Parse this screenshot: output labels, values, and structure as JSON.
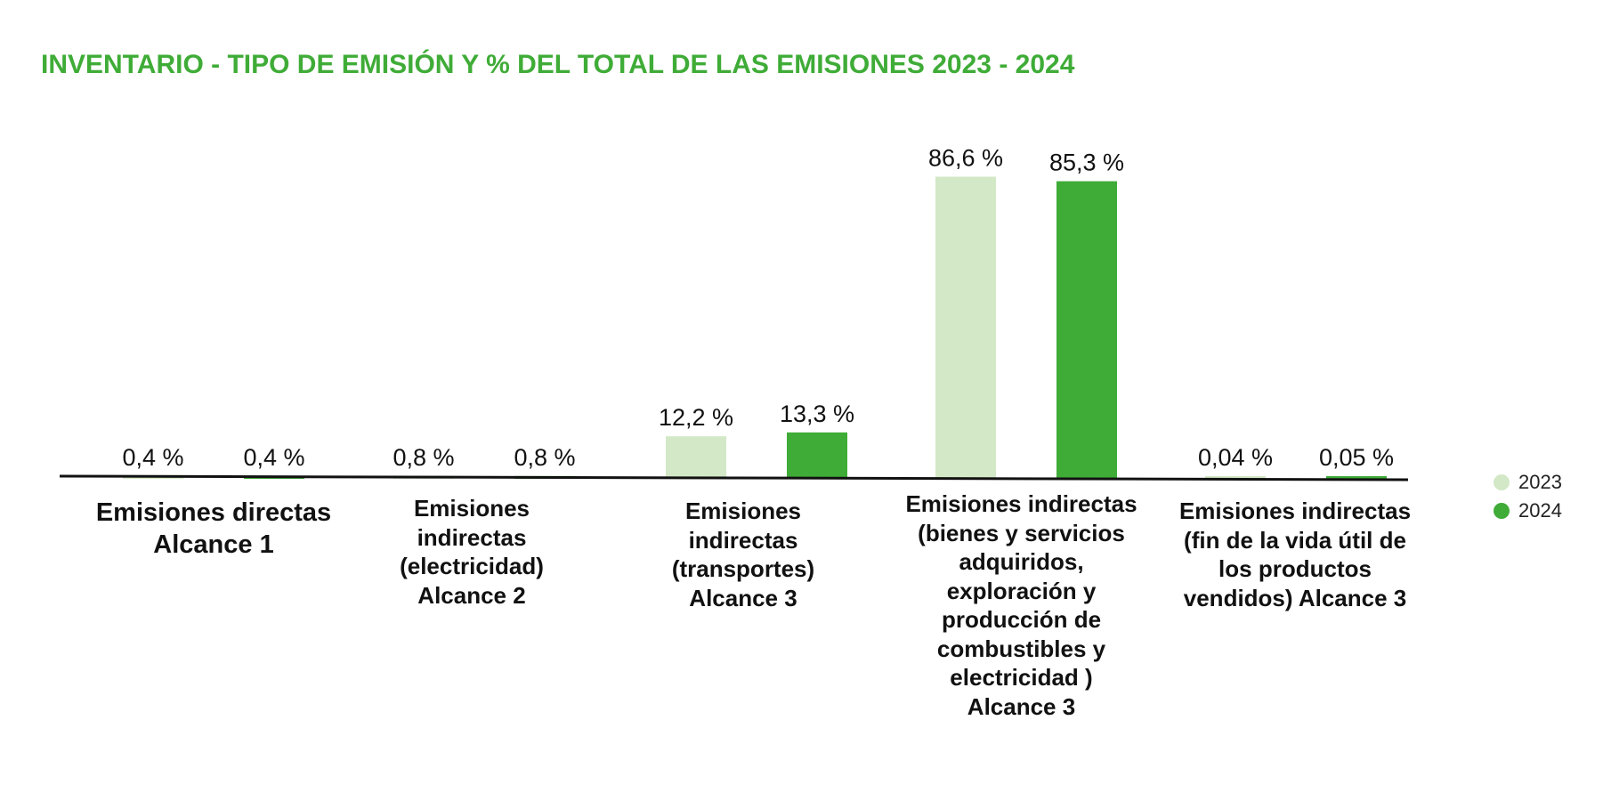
{
  "chart_data": {
    "type": "bar",
    "title": "INVENTARIO - TIPO DE EMISIÓN Y % DEL TOTAL DE LAS EMISIONES 2023 - 2024",
    "xlabel": "",
    "ylabel": "",
    "ylim": [
      0,
      100
    ],
    "grid": false,
    "legend_position": "right",
    "categories": [
      "Emisiones directas Alcance 1",
      "Emisiones indirectas (electricidad) Alcance 2",
      "Emisiones indirectas (transportes) Alcance 3",
      "Emisiones indirectas (bienes y servicios adquiridos, exploración y producción de combustibles y electricidad ) Alcance 3",
      "Emisiones indirectas (fin de la vida útil de los productos vendidos) Alcance 3"
    ],
    "series": [
      {
        "name": "2023",
        "color": "#d3e8c6",
        "values": [
          0.4,
          0.8,
          12.2,
          86.6,
          0.04
        ],
        "labels": [
          "0,4 %",
          "0,8 %",
          "12,2 %",
          "86,6 %",
          "0,04 %"
        ]
      },
      {
        "name": "2024",
        "color": "#3fac37",
        "values": [
          0.4,
          0.8,
          13.3,
          85.3,
          0.05
        ],
        "labels": [
          "0,4 %",
          "0,8 %",
          "13,3 %",
          "85,3 %",
          "0,05 %"
        ]
      }
    ]
  },
  "colors": {
    "title": "#3fac37",
    "axis": "#111111"
  }
}
